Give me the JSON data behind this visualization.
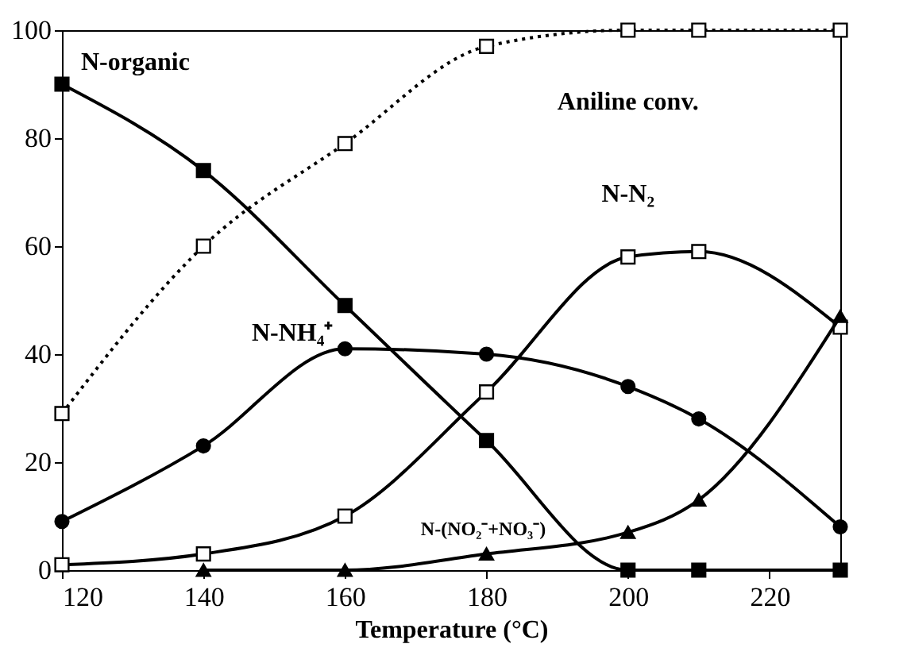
{
  "chart_data": {
    "type": "line",
    "xlabel": "Temperature (°C)",
    "xlim": [
      120,
      230
    ],
    "xticks": [
      120,
      140,
      160,
      180,
      200,
      220
    ],
    "ylim": [
      0,
      100
    ],
    "yticks": [
      0,
      20,
      40,
      60,
      80,
      100
    ],
    "grid": false,
    "x": [
      120,
      140,
      160,
      180,
      200,
      210,
      230
    ],
    "series": [
      {
        "name": "N-organic",
        "color": "#000000",
        "marker": "square",
        "line_style": "solid",
        "values": [
          90,
          74,
          49,
          24,
          0,
          0,
          0
        ]
      },
      {
        "name": "Aniline conv.",
        "color": "#000000",
        "marker": "square",
        "line_style": "dotted",
        "values": [
          29,
          60,
          79,
          97,
          100,
          100,
          100
        ]
      },
      {
        "name": "N-NH₄⁺",
        "color": "#000000",
        "marker": "circle",
        "line_style": "solid",
        "values": [
          9,
          23,
          41,
          40,
          34,
          28,
          8
        ]
      },
      {
        "name": "N-N₂",
        "color": "#000000",
        "marker": "square",
        "line_style": "solid",
        "values": [
          1,
          3,
          10,
          33,
          58,
          59,
          45
        ]
      },
      {
        "name": "N-(NO₂⁻+NO₃⁻)",
        "color": "#000000",
        "marker": "triangle",
        "line_style": "solid",
        "values": [
          null,
          0,
          0,
          3,
          7,
          13,
          47
        ]
      }
    ]
  }
}
